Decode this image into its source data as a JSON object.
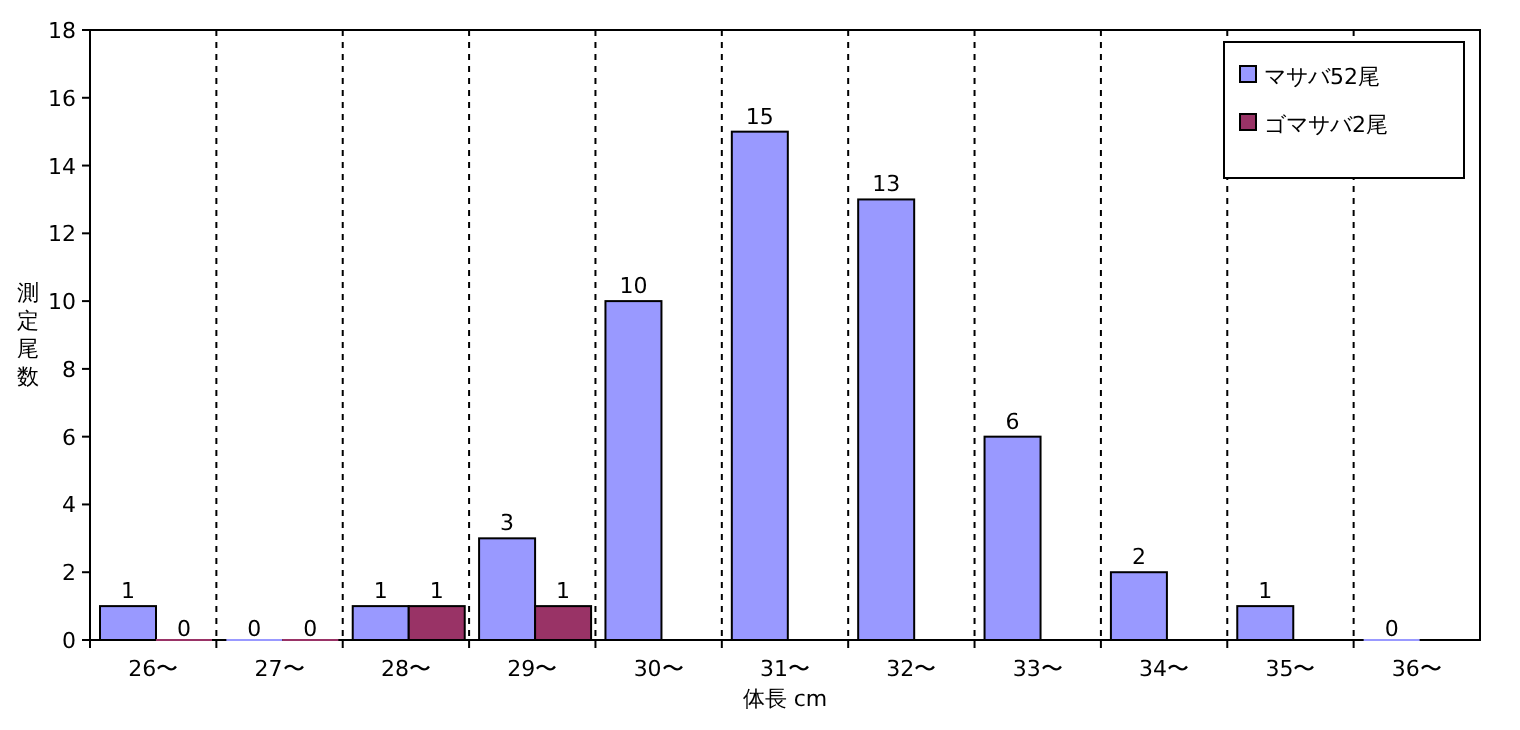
{
  "chart_data": {
    "type": "bar",
    "xlabel": "体長 cm",
    "ylabel": "測定尾数",
    "categories": [
      "26〜",
      "27〜",
      "28〜",
      "29〜",
      "30〜",
      "31〜",
      "32〜",
      "33〜",
      "34〜",
      "35〜",
      "36〜"
    ],
    "series": [
      {
        "name": "マサバ52尾",
        "color": "#9999ff",
        "values": [
          1,
          0,
          1,
          3,
          10,
          15,
          13,
          6,
          2,
          1,
          0
        ]
      },
      {
        "name": "ゴマサバ2尾",
        "color": "#993366",
        "values": [
          0,
          0,
          1,
          1,
          null,
          null,
          null,
          null,
          null,
          null,
          null
        ]
      }
    ],
    "ylim": [
      0,
      18
    ],
    "yticks": [
      0,
      2,
      4,
      6,
      8,
      10,
      12,
      14,
      16,
      18
    ],
    "grid": "x",
    "legend": "top right",
    "data_labels": true
  }
}
